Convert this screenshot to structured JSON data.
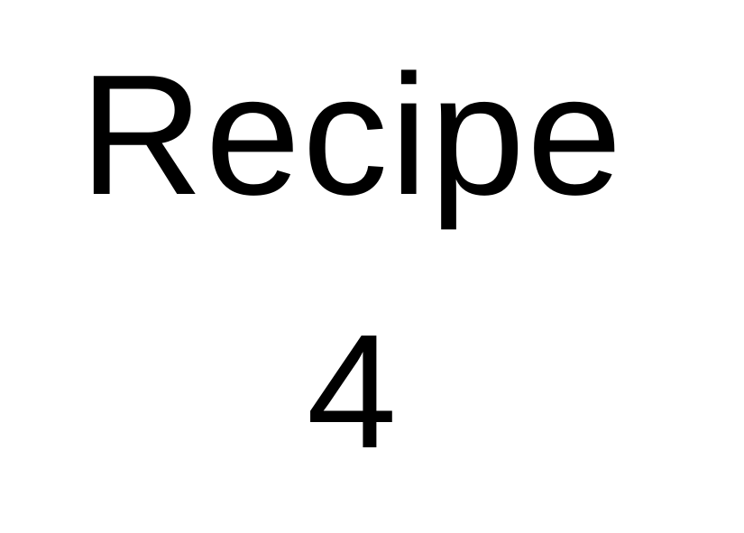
{
  "slide": {
    "title": "Recipe",
    "number": "4"
  },
  "colors": {
    "background": "#ffffff",
    "text": "#000000"
  }
}
